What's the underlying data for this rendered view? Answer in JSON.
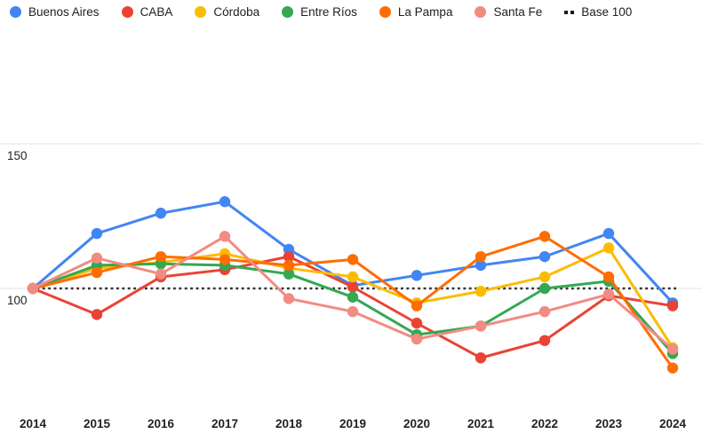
{
  "legend": {
    "items": [
      {
        "label": "Buenos Aires",
        "color": "#4285F4",
        "marker": "dot"
      },
      {
        "label": "CABA",
        "color": "#EA4335",
        "marker": "dot"
      },
      {
        "label": "Córdoba",
        "color": "#FBBC04",
        "marker": "dot"
      },
      {
        "label": "Entre Ríos",
        "color": "#34A853",
        "marker": "dot"
      },
      {
        "label": "La Pampa",
        "color": "#FF6D01",
        "marker": "dot"
      },
      {
        "label": "Santa Fe",
        "color": "#F28B82",
        "marker": "dot"
      },
      {
        "label": "Base 100",
        "color": "#1b1b1b",
        "marker": "dashes"
      }
    ]
  },
  "chart_data": {
    "type": "line",
    "x": [
      2014,
      2015,
      2016,
      2017,
      2018,
      2019,
      2020,
      2021,
      2022,
      2023,
      2024
    ],
    "series": [
      {
        "name": "Buenos Aires",
        "color": "#4285F4",
        "values": [
          100,
          119,
          126,
          130,
          113.5,
          101,
          104.5,
          108,
          111,
          119,
          95
        ]
      },
      {
        "name": "CABA",
        "color": "#EA4335",
        "values": [
          100,
          91,
          104,
          106.5,
          111,
          100.5,
          88,
          76,
          82,
          97.5,
          94
        ]
      },
      {
        "name": "Córdoba",
        "color": "#FBBC04",
        "values": [
          100,
          107,
          109,
          112,
          107,
          104,
          95,
          99,
          104,
          114,
          79.5
        ]
      },
      {
        "name": "Entre Ríos",
        "color": "#34A853",
        "values": [
          100,
          108,
          108.5,
          108,
          105,
          97,
          84,
          87,
          100,
          102.5,
          77.5
        ]
      },
      {
        "name": "La Pampa",
        "color": "#FF6D01",
        "values": [
          100,
          105.5,
          111,
          110,
          108,
          110,
          94,
          111,
          118,
          104,
          72.5
        ]
      },
      {
        "name": "Santa Fe",
        "color": "#F28B82",
        "values": [
          100,
          110.5,
          105,
          118,
          96.5,
          92,
          82.5,
          87,
          92,
          98,
          79
        ]
      }
    ],
    "baseline": {
      "name": "Base 100",
      "value": 100,
      "color": "#333333",
      "style": "dotted"
    },
    "yticks": [
      100,
      150
    ],
    "ylim": [
      50,
      200
    ],
    "grid": true,
    "legend_position": "top",
    "grid_color": "#e3e3e3",
    "axis_text_color": "#222222"
  }
}
